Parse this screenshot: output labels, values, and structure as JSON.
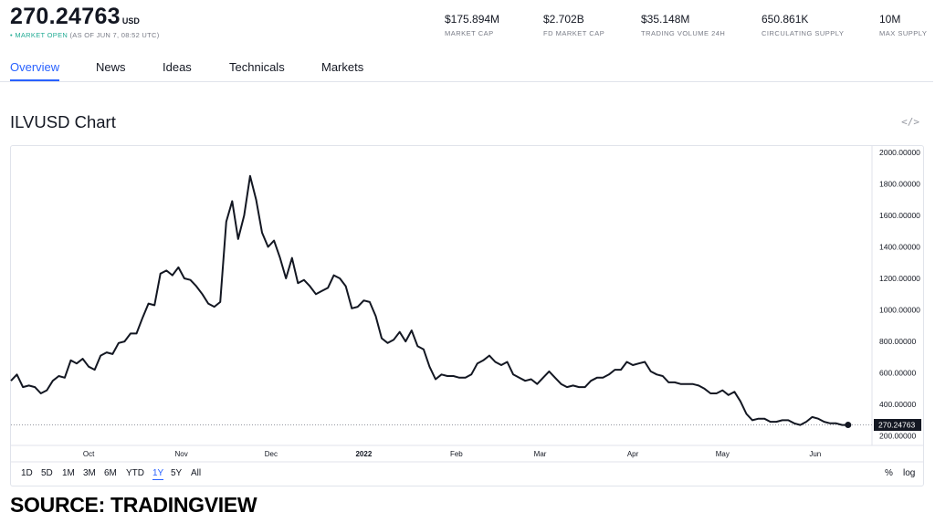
{
  "header": {
    "price": "270.24763",
    "currency": "USD",
    "dot": "•",
    "market_open": "MARKET OPEN",
    "as_of": "(AS OF JUN 7, 08:52 UTC)"
  },
  "stats": [
    {
      "value": "$175.894M",
      "label": "MARKET CAP"
    },
    {
      "value": "$2.702B",
      "label": "FD MARKET CAP"
    },
    {
      "value": "$35.148M",
      "label": "TRADING VOLUME 24H"
    },
    {
      "value": "650.861K",
      "label": "CIRCULATING SUPPLY"
    },
    {
      "value": "10M",
      "label": "MAX SUPPLY"
    }
  ],
  "tabs": [
    {
      "label": "Overview",
      "active": true
    },
    {
      "label": "News",
      "active": false
    },
    {
      "label": "Ideas",
      "active": false
    },
    {
      "label": "Technicals",
      "active": false
    },
    {
      "label": "Markets",
      "active": false
    }
  ],
  "chart_title": "ILVUSD Chart",
  "embed_icon": "</>",
  "ranges": [
    {
      "label": "1D",
      "active": false
    },
    {
      "label": "5D",
      "active": false
    },
    {
      "label": "1M",
      "active": false
    },
    {
      "label": "3M",
      "active": false
    },
    {
      "label": "6M",
      "active": false
    },
    {
      "label": "YTD",
      "active": false
    },
    {
      "label": "1Y",
      "active": true
    },
    {
      "label": "5Y",
      "active": false
    },
    {
      "label": "All",
      "active": false
    }
  ],
  "scale_options": [
    "%",
    "log"
  ],
  "source_label": "SOURCE: TRADINGVIEW",
  "colors": {
    "line": "#131722",
    "accent": "#2962ff",
    "open": "#22ab94",
    "axis_text": "#131722"
  },
  "chart_data": {
    "type": "line",
    "title": "ILVUSD Chart",
    "xlabel": "",
    "ylabel": "",
    "ylim": [
      140,
      2040
    ],
    "yticks": [
      200,
      400,
      600,
      800,
      1000,
      1200,
      1400,
      1600,
      1800,
      2000
    ],
    "ytick_labels": [
      "200.00000",
      "400.00000",
      "600.00000",
      "800.00000",
      "1000.00000",
      "1200.00000",
      "1400.00000",
      "1600.00000",
      "1800.00000",
      "2000.00000"
    ],
    "x_ticks": [
      {
        "label": "Oct",
        "day": 26,
        "bold": false
      },
      {
        "label": "Nov",
        "day": 57,
        "bold": false
      },
      {
        "label": "Dec",
        "day": 87,
        "bold": false
      },
      {
        "label": "2022",
        "day": 118,
        "bold": true
      },
      {
        "label": "Feb",
        "day": 149,
        "bold": false
      },
      {
        "label": "Mar",
        "day": 177,
        "bold": false
      },
      {
        "label": "Apr",
        "day": 208,
        "bold": false
      },
      {
        "label": "May",
        "day": 238,
        "bold": false
      },
      {
        "label": "Jun",
        "day": 269,
        "bold": false
      }
    ],
    "xlim": [
      0,
      288
    ],
    "last_price": 270.24763,
    "last_price_label": "270.24763",
    "series": [
      {
        "name": "ILVUSD",
        "x": [
          0,
          2,
          4,
          6,
          8,
          10,
          12,
          14,
          16,
          18,
          20,
          22,
          24,
          26,
          28,
          30,
          32,
          34,
          36,
          38,
          40,
          42,
          44,
          46,
          48,
          50,
          52,
          54,
          56,
          58,
          60,
          62,
          64,
          66,
          68,
          70,
          72,
          74,
          76,
          78,
          80,
          82,
          84,
          86,
          88,
          90,
          92,
          94,
          96,
          98,
          100,
          102,
          104,
          106,
          108,
          110,
          112,
          114,
          116,
          118,
          120,
          122,
          124,
          126,
          128,
          130,
          132,
          134,
          136,
          138,
          140,
          142,
          144,
          146,
          148,
          150,
          152,
          154,
          156,
          158,
          160,
          162,
          164,
          166,
          168,
          170,
          172,
          174,
          176,
          178,
          180,
          182,
          184,
          186,
          188,
          190,
          192,
          194,
          196,
          198,
          200,
          202,
          204,
          206,
          208,
          210,
          212,
          214,
          216,
          218,
          220,
          222,
          224,
          226,
          228,
          230,
          232,
          234,
          236,
          238,
          240,
          242,
          244,
          246,
          248,
          250,
          252,
          254,
          256,
          258,
          260,
          262,
          264,
          266,
          268,
          270,
          272,
          274,
          276,
          278,
          280
        ],
        "values": [
          550,
          590,
          510,
          520,
          510,
          470,
          490,
          550,
          580,
          570,
          680,
          660,
          690,
          640,
          620,
          710,
          730,
          720,
          790,
          800,
          850,
          850,
          950,
          1040,
          1030,
          1230,
          1250,
          1220,
          1270,
          1200,
          1190,
          1150,
          1100,
          1040,
          1020,
          1050,
          1560,
          1690,
          1450,
          1600,
          1850,
          1700,
          1490,
          1400,
          1440,
          1330,
          1200,
          1330,
          1170,
          1190,
          1150,
          1100,
          1120,
          1140,
          1220,
          1200,
          1150,
          1010,
          1020,
          1060,
          1050,
          960,
          820,
          790,
          810,
          860,
          800,
          870,
          770,
          750,
          640,
          560,
          590,
          580,
          580,
          570,
          570,
          590,
          660,
          680,
          710,
          670,
          650,
          670,
          590,
          570,
          550,
          560,
          530,
          570,
          610,
          570,
          530,
          510,
          520,
          510,
          510,
          550,
          570,
          570,
          590,
          620,
          620,
          670,
          650,
          660,
          670,
          610,
          590,
          580,
          540,
          540,
          530,
          530,
          530,
          520,
          500,
          470,
          470,
          490,
          460,
          480,
          420,
          340,
          300,
          310,
          310,
          290,
          290,
          300,
          300,
          280,
          270,
          290,
          320,
          310,
          290,
          280,
          280,
          270,
          270
        ]
      }
    ]
  }
}
